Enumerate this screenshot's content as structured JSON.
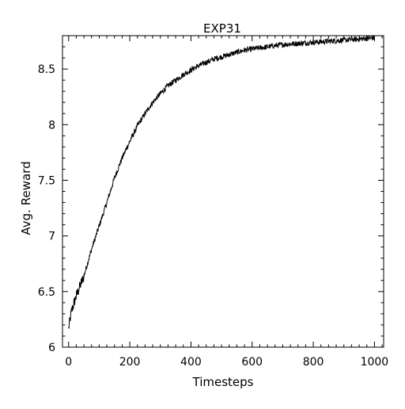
{
  "chart_data": {
    "type": "line",
    "title": "EXP31",
    "xlabel": "Timesteps",
    "ylabel": "Avg. Reward",
    "xlim": [
      -20,
      1030
    ],
    "ylim": [
      6.0,
      8.8
    ],
    "xticks": [
      0,
      200,
      400,
      600,
      800,
      1000
    ],
    "yticks": [
      6,
      6.5,
      7,
      7.5,
      8,
      8.5
    ],
    "xtick_labels": [
      "0",
      "200",
      "400",
      "600",
      "800",
      "1000"
    ],
    "ytick_labels": [
      "6",
      "6.5",
      "7",
      "7.5",
      "8",
      "8.5"
    ],
    "grid": false,
    "legend": "none",
    "line_color": "#000000",
    "series": [
      {
        "x": [
          0,
          10,
          25,
          50,
          75,
          100,
          125,
          150,
          175,
          200,
          225,
          250,
          275,
          300,
          325,
          350,
          375,
          400,
          425,
          450,
          475,
          500,
          525,
          550,
          575,
          600,
          625,
          650,
          675,
          700,
          725,
          750,
          775,
          800,
          825,
          850,
          875,
          900,
          925,
          950,
          975,
          1000
        ],
        "values": [
          6.17,
          6.33,
          6.46,
          6.64,
          6.88,
          7.09,
          7.3,
          7.52,
          7.7,
          7.85,
          7.99,
          8.1,
          8.2,
          8.28,
          8.35,
          8.4,
          8.45,
          8.49,
          8.53,
          8.56,
          8.59,
          8.61,
          8.63,
          8.65,
          8.67,
          8.68,
          8.69,
          8.7,
          8.71,
          8.72,
          8.725,
          8.73,
          8.735,
          8.74,
          8.745,
          8.75,
          8.755,
          8.76,
          8.765,
          8.77,
          8.775,
          8.78
        ]
      }
    ]
  }
}
